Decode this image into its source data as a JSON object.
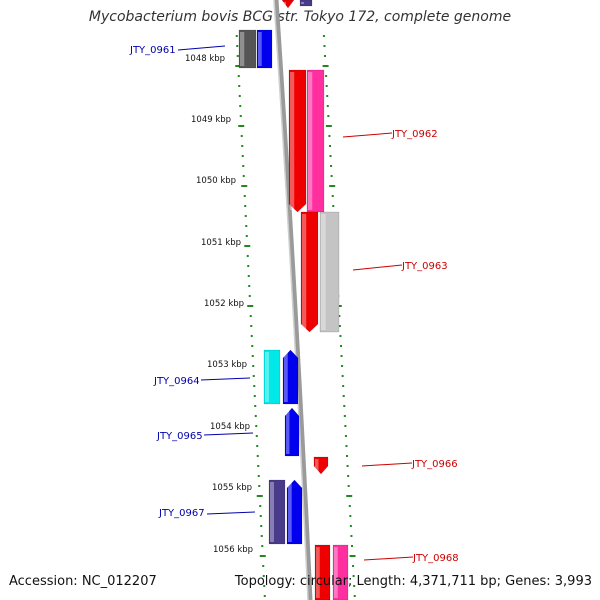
{
  "title": "Mycobacterium bovis BCG str. Tokyo 172, complete genome",
  "footer": {
    "accession": "Accession: NC_012207",
    "summary": "Topology: circular; Length: 4,371,711 bp; Genes: 3,993"
  },
  "ticks": [
    "1048 kbp",
    "1049 kbp",
    "1050 kbp",
    "1051 kbp",
    "1052 kbp",
    "1053 kbp",
    "1054 kbp",
    "1055 kbp",
    "1056 kbp"
  ],
  "colors": {
    "forward": "#0000ee",
    "reverse": "#ee0000",
    "forward_label": "#0000aa",
    "reverse_label": "#cc0000",
    "tick": "#228822",
    "backbone": "#888888"
  },
  "gene_labels": [
    {
      "name": "JTY_0961",
      "strand": "forward"
    },
    {
      "name": "JTY_0962",
      "strand": "reverse"
    },
    {
      "name": "JTY_0963",
      "strand": "reverse"
    },
    {
      "name": "JTY_0964",
      "strand": "forward"
    },
    {
      "name": "JTY_0965",
      "strand": "forward"
    },
    {
      "name": "JTY_0966",
      "strand": "reverse"
    },
    {
      "name": "JTY_0967",
      "strand": "forward"
    },
    {
      "name": "JTY_0968",
      "strand": "reverse"
    }
  ]
}
